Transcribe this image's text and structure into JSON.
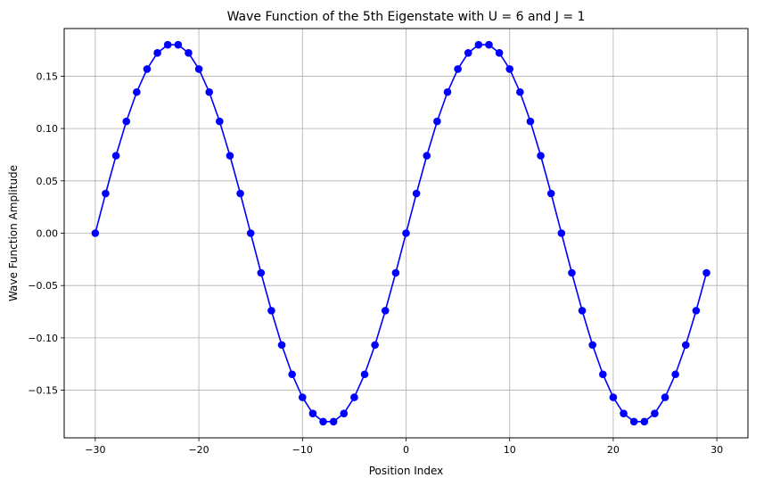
{
  "chart_data": {
    "type": "line",
    "title": "Wave Function of the 5th Eigenstate with U = 6 and J = 1",
    "xlabel": "Position Index",
    "ylabel": "Wave Function Amplitude",
    "xlim": [
      -33,
      33
    ],
    "ylim": [
      -0.1955,
      0.1955
    ],
    "xticks": [
      -30,
      -20,
      -10,
      0,
      10,
      20,
      30
    ],
    "xtick_labels": [
      "−30",
      "−20",
      "−10",
      "0",
      "10",
      "20",
      "30"
    ],
    "yticks": [
      -0.15,
      -0.1,
      -0.05,
      0.0,
      0.05,
      0.1,
      0.15
    ],
    "ytick_labels": [
      "−0.15",
      "−0.10",
      "−0.05",
      "0.00",
      "0.05",
      "0.10",
      "0.15"
    ],
    "grid": true,
    "legend": "none",
    "series": [
      {
        "color": "#0000ff",
        "marker": "circle",
        "x": [
          -30,
          -29,
          -28,
          -27,
          -26,
          -25,
          -24,
          -23,
          -22,
          -21,
          -20,
          -19,
          -18,
          -17,
          -16,
          -15,
          -14,
          -13,
          -12,
          -11,
          -10,
          -9,
          -8,
          -7,
          -6,
          -5,
          -4,
          -3,
          -2,
          -1,
          0,
          1,
          2,
          3,
          4,
          5,
          6,
          7,
          8,
          9,
          10,
          11,
          12,
          13,
          14,
          15,
          16,
          17,
          18,
          19,
          20,
          21,
          22,
          23,
          24,
          25,
          26,
          27,
          28,
          29
        ],
        "y": [
          0.0,
          0.0379,
          0.074,
          0.1068,
          0.1348,
          0.1568,
          0.1722,
          0.18,
          0.18,
          0.1722,
          0.1568,
          0.1348,
          0.1068,
          0.074,
          0.0379,
          0.0,
          -0.0379,
          -0.074,
          -0.1068,
          -0.1348,
          -0.1568,
          -0.1722,
          -0.18,
          -0.18,
          -0.1722,
          -0.1568,
          -0.1348,
          -0.1068,
          -0.074,
          -0.0379,
          0.0,
          0.0379,
          0.074,
          0.1068,
          0.1348,
          0.1568,
          0.1722,
          0.18,
          0.18,
          0.1722,
          0.1568,
          0.1348,
          0.1068,
          0.074,
          0.0379,
          0.0,
          -0.0379,
          -0.074,
          -0.1068,
          -0.1348,
          -0.1568,
          -0.1722,
          -0.18,
          -0.18,
          -0.1722,
          -0.1568,
          -0.1348,
          -0.1068,
          -0.074,
          -0.0379
        ]
      }
    ]
  }
}
